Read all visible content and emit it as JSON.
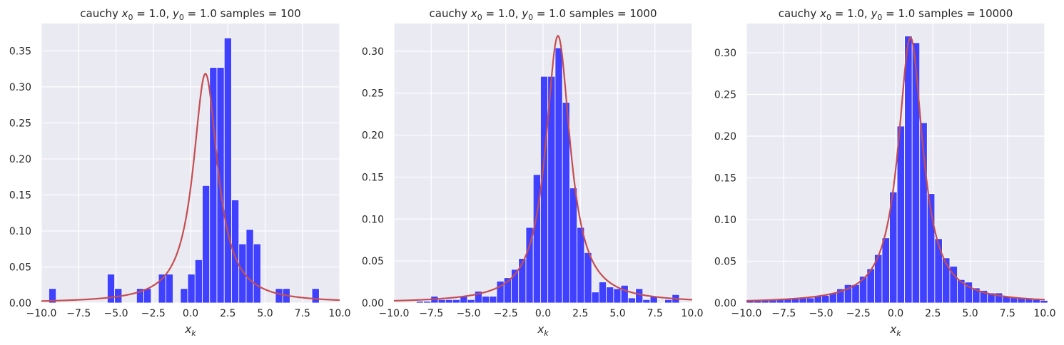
{
  "chart_data": [
    {
      "type": "bar",
      "title_parts": [
        "cauchy ",
        "x",
        "0",
        " = 1.0, ",
        "y",
        "0",
        " = 1.0  samples = 100"
      ],
      "xlabel_parts": [
        "x",
        "k"
      ],
      "xlim": [
        -10,
        10
      ],
      "ylim": [
        0,
        0.388
      ],
      "xticks": [
        -10,
        -7.5,
        -5,
        -2.5,
        0,
        2.5,
        5,
        7.5,
        10
      ],
      "xtick_labels": [
        "−10.0",
        "−7.5",
        "−5.0",
        "−2.5",
        "0.0",
        "2.5",
        "5.0",
        "7.5",
        "10.0"
      ],
      "yticks": [
        0,
        0.05,
        0.1,
        0.15,
        0.2,
        0.25,
        0.3,
        0.35
      ],
      "ytick_labels": [
        "0.00",
        "0.05",
        "0.10",
        "0.15",
        "0.20",
        "0.25",
        "0.30",
        "0.35"
      ],
      "grid": true,
      "bin_edges": [
        -9.5,
        4.9
      ],
      "bin_width": 0.49,
      "histogram": [
        0.02,
        0,
        0,
        0,
        0,
        0,
        0,
        0,
        0.04,
        0.02,
        0,
        0,
        0.02,
        0.02,
        0,
        0.04,
        0.04,
        0,
        0.02,
        0.04,
        0.06,
        0.163,
        0.327,
        0.327,
        0.368,
        0.143,
        0.082,
        0.102,
        0.082,
        0,
        0,
        0.02,
        0.02,
        0,
        0,
        0,
        0.02
      ],
      "bar_color": "#4040ff",
      "curve": {
        "x0": 1.0,
        "gamma": 1.0,
        "color": "#c44e52"
      }
    },
    {
      "type": "bar",
      "title_parts": [
        "cauchy ",
        "x",
        "0",
        " = 1.0, ",
        "y",
        "0",
        " = 1.0  samples = 1000"
      ],
      "xlabel_parts": [
        "x",
        "k"
      ],
      "xlim": [
        -10,
        10
      ],
      "ylim": [
        0,
        0.333
      ],
      "xticks": [
        -10,
        -7.5,
        -5,
        -2.5,
        0,
        2.5,
        5,
        7.5,
        10
      ],
      "xtick_labels": [
        "−10.0",
        "−7.5",
        "−5.0",
        "−2.5",
        "0.0",
        "2.5",
        "5.0",
        "7.5",
        "10.0"
      ],
      "yticks": [
        0,
        0.05,
        0.1,
        0.15,
        0.2,
        0.25,
        0.3
      ],
      "ytick_labels": [
        "0.00",
        "0.05",
        "0.10",
        "0.15",
        "0.20",
        "0.25",
        "0.30"
      ],
      "grid": true,
      "bin_edges": [
        -8.5,
        0.49
      ],
      "bin_width": 0.49,
      "histogram": [
        0.002,
        0.002,
        0.008,
        0.004,
        0.004,
        0.004,
        0.008,
        0.004,
        0.014,
        0.008,
        0.008,
        0.026,
        0.03,
        0.04,
        0.053,
        0.09,
        0.153,
        0.27,
        0.27,
        0.304,
        0.239,
        0.137,
        0.09,
        0.06,
        0.013,
        0.025,
        0.019,
        0.017,
        0.021,
        0.006,
        0.017,
        0.004,
        0.008,
        0,
        0.004,
        0.01
      ],
      "bar_color": "#4040ff",
      "curve": {
        "x0": 1.0,
        "gamma": 1.0,
        "color": "#c44e52"
      }
    },
    {
      "type": "bar",
      "title_parts": [
        "cauchy ",
        "x",
        "0",
        " = 1.0, ",
        "y",
        "0",
        " = 1.0  samples = 10000"
      ],
      "xlabel_parts": [
        "x",
        "k"
      ],
      "xlim": [
        -10,
        10
      ],
      "ylim": [
        0,
        0.335
      ],
      "xticks": [
        -10,
        -7.5,
        -5,
        -2.5,
        0,
        2.5,
        5,
        7.5,
        10
      ],
      "xtick_labels": [
        "−10.0",
        "−7.5",
        "−5.0",
        "−2.5",
        "0.0",
        "2.5",
        "5.0",
        "7.5",
        "10.0"
      ],
      "yticks": [
        0,
        0.05,
        0.1,
        0.15,
        0.2,
        0.25,
        0.3
      ],
      "ytick_labels": [
        "0.00",
        "0.05",
        "0.10",
        "0.15",
        "0.20",
        "0.25",
        "0.30"
      ],
      "grid": true,
      "bin_edges": [
        -10,
        0.505
      ],
      "bin_width": 0.505,
      "histogram": [
        0.003,
        0.003,
        0.003,
        0.004,
        0.004,
        0.005,
        0.006,
        0.007,
        0.006,
        0.008,
        0.009,
        0.012,
        0.017,
        0.022,
        0.022,
        0.032,
        0.041,
        0.058,
        0.078,
        0.133,
        0.212,
        0.32,
        0.312,
        0.216,
        0.131,
        0.077,
        0.054,
        0.044,
        0.028,
        0.025,
        0.018,
        0.015,
        0.012,
        0.012,
        0.008,
        0.007,
        0.006,
        0.005,
        0.004,
        0.003
      ],
      "bar_color": "#4040ff",
      "curve": {
        "x0": 1.0,
        "gamma": 1.0,
        "color": "#c44e52"
      }
    }
  ]
}
